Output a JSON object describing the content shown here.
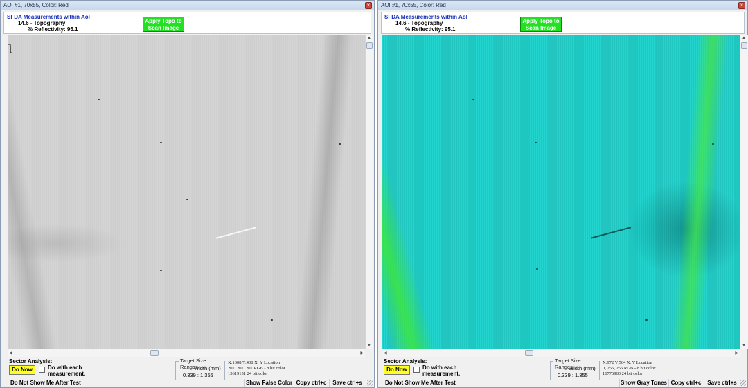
{
  "windows": [
    {
      "title": "AOI #1, 70x55, Color: Red",
      "panel": {
        "heading": "SFDA Measurements within AoI",
        "line1": "14.6 - Topography",
        "line2": "% Reflectivity: 95.1",
        "apply_button": "Apply Topo to Scan Image"
      },
      "image_style": "grayscale scan",
      "sector": {
        "label": "Sector Analysis:",
        "do_now": "Do Now",
        "do_with_each": "Do with each measurement.",
        "checked": false
      },
      "target": {
        "title": "Target Size Ranges",
        "width_label": "Width (mm)",
        "range": "0.339 : 1.355"
      },
      "pixel_info": {
        "location": "X:1308 Y:408  X, Y Location",
        "rgb": "207, 207, 207  RGB - 8 bit color",
        "color24": "13619151  24 bit color"
      },
      "bottom": {
        "dont_show": "Do Not Show Me After Test",
        "toggle_button": "Show False Color",
        "copy_button": "Copy ctrl+c",
        "save_button": "Save ctrl+s"
      }
    },
    {
      "title": "AOI #1, 70x55, Color: Red",
      "panel": {
        "heading": "SFDA Measurements within AoI",
        "line1": "14.6 - Topography",
        "line2": "% Reflectivity: 95.1",
        "apply_button": "Apply Topo to Scan Image"
      },
      "image_style": "false color scan",
      "sector": {
        "label": "Sector Analysis:",
        "do_now": "Do Now",
        "do_with_each": "Do with each measurement.",
        "checked": false
      },
      "target": {
        "title": "Target Size Ranges",
        "width_label": "Width (mm)",
        "range": "0.339 : 1.355"
      },
      "pixel_info": {
        "location": "X:972 Y:564  X, Y Location",
        "rgb": "0, 255, 255  RGB - 8 bit color",
        "color24": "16776960  24 bit color"
      },
      "bottom": {
        "dont_show": "Do Not Show Me After Test",
        "toggle_button": "Show Gray Tones",
        "copy_button": "Copy ctrl+c",
        "save_button": "Save ctrl+s"
      }
    }
  ],
  "colors": {
    "apply_button": "#22e022",
    "do_now_button": "#ffff22",
    "heading_blue": "#1530b8",
    "false_color_cyan": "#22d3cd",
    "false_color_green": "#3ce63c"
  }
}
